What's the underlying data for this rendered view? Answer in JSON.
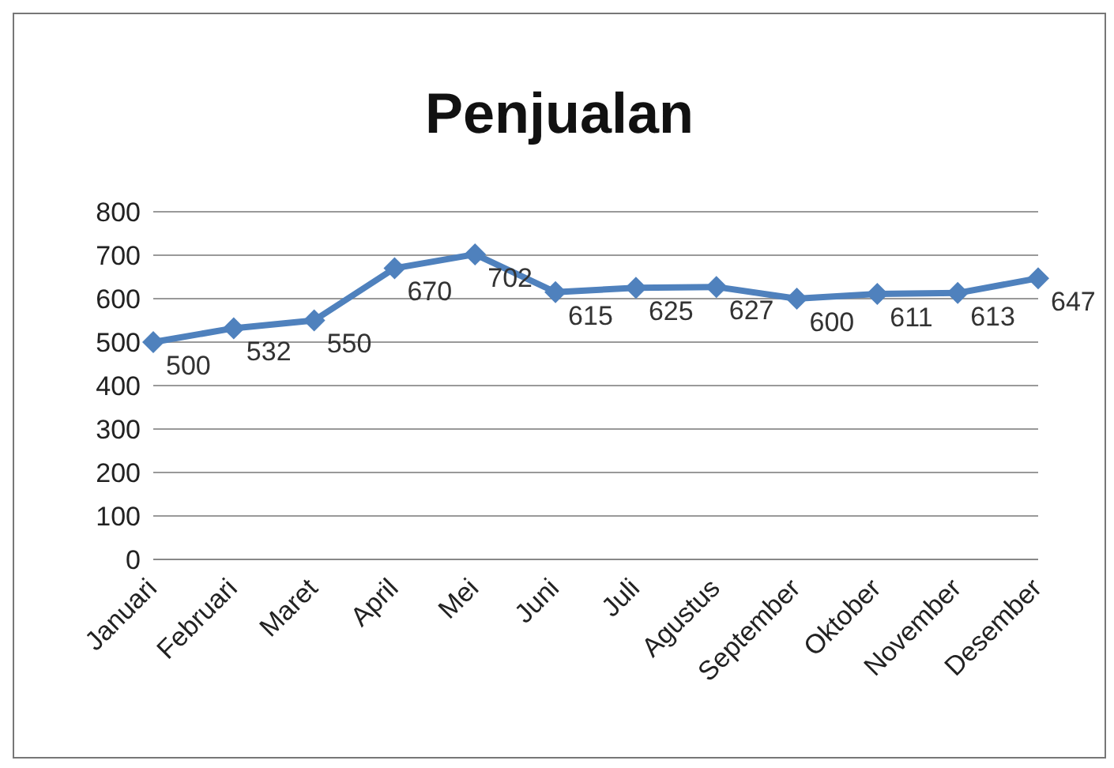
{
  "chart_data": {
    "type": "line",
    "title": "Penjualan",
    "categories": [
      "Januari",
      "Februari",
      "Maret",
      "April",
      "Mei",
      "Juni",
      "Juli",
      "Agustus",
      "September",
      "Oktober",
      "November",
      "Desember"
    ],
    "series": [
      {
        "color": "#4f81bd",
        "values": [
          500,
          532,
          550,
          670,
          702,
          615,
          625,
          627,
          600,
          611,
          613,
          647
        ]
      }
    ],
    "ylim": [
      0,
      800
    ],
    "yticks": [
      0,
      100,
      200,
      300,
      400,
      500,
      600,
      700,
      800
    ],
    "grid": "y",
    "marker": "diamond",
    "line_style": "solid",
    "data_labels": true
  }
}
